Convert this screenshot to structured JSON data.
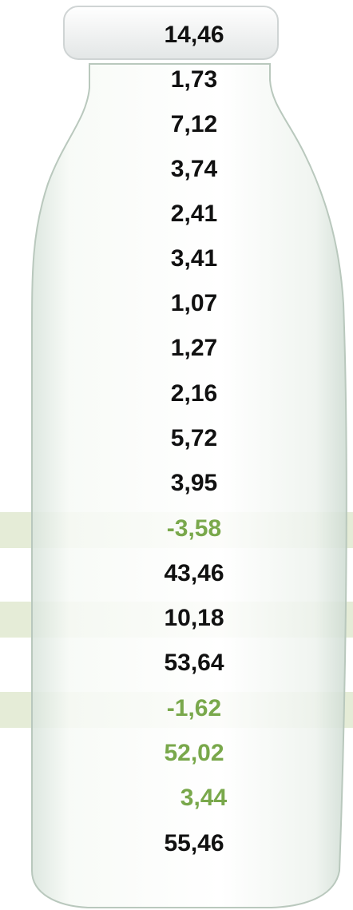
{
  "rows": [
    "14,46",
    "1,73",
    "7,12",
    "3,74",
    "2,41",
    "3,41",
    "1,07",
    "1,27",
    "2,16",
    "5,72",
    "3,95",
    "-3,58",
    "43,46",
    "10,18",
    "53,64",
    "-1,62",
    "52,02",
    "3,44",
    "55,46"
  ]
}
